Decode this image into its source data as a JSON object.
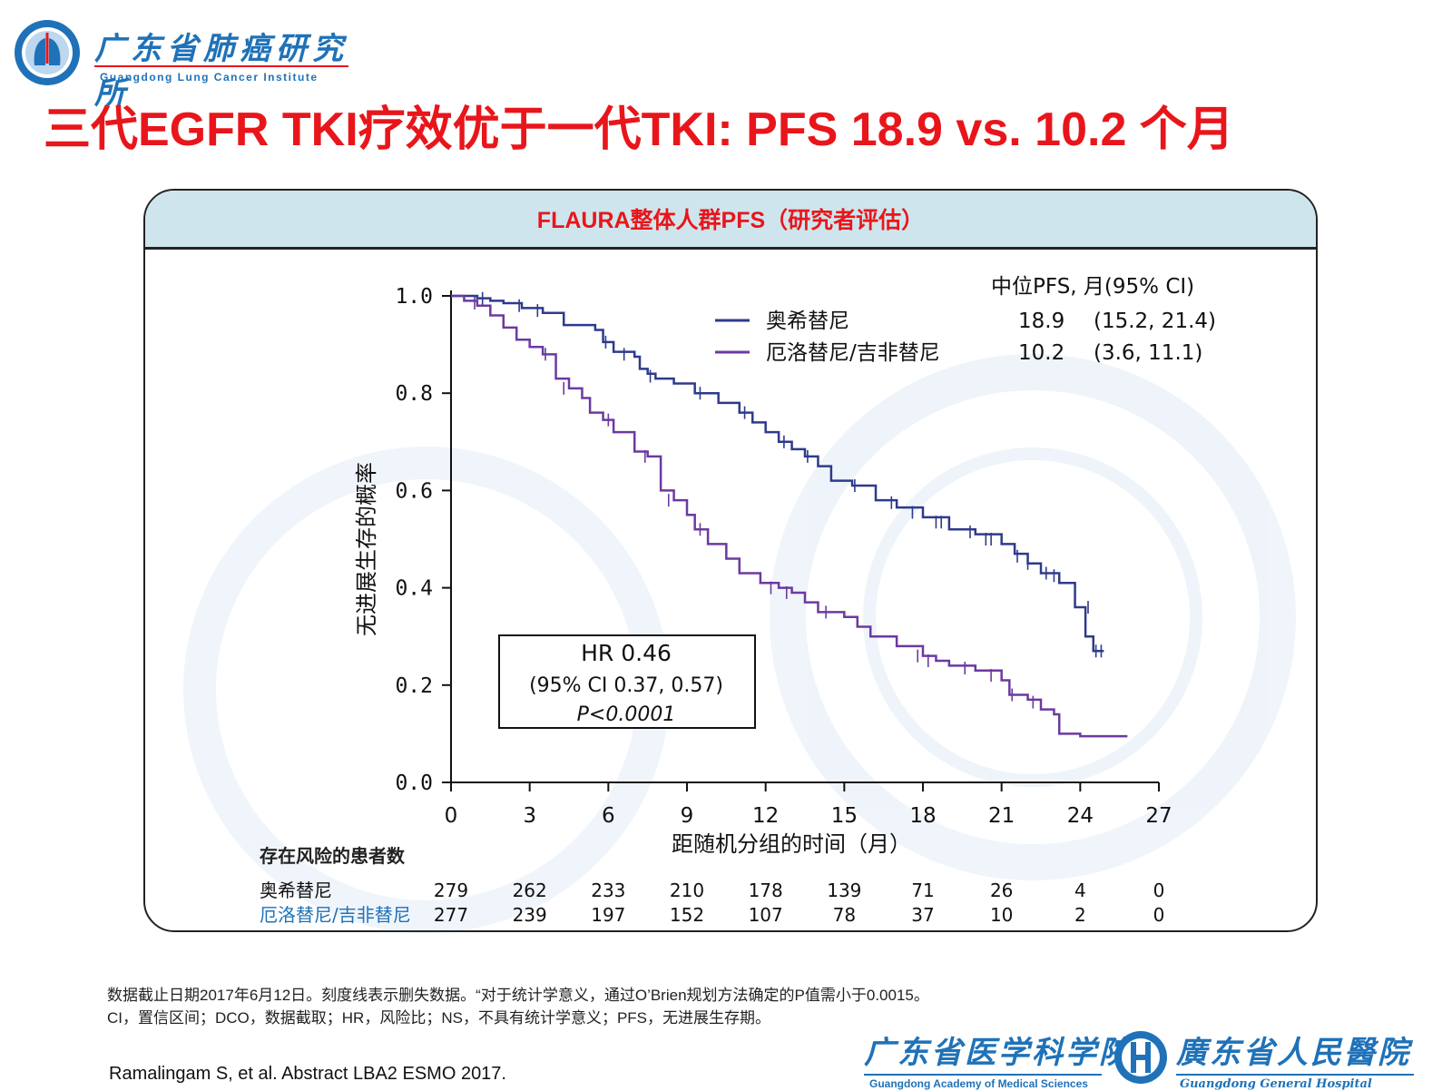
{
  "header": {
    "logo_cn": "广东省肺癌研究所",
    "logo_en": "Guangdong Lung Cancer Institute",
    "title": "三代EGFR TKI疗效优于一代TKI: PFS 18.9 vs. 10.2 个月"
  },
  "panel": {
    "title": "FLAURA整体人群PFS（研究者评估）"
  },
  "colors": {
    "osimertinib": "#2e3a8c",
    "comparator": "#6b3aa0",
    "title_red": "#e8161b",
    "panel_header": "#cfe5ed",
    "blue_label": "#1f72b8"
  },
  "chart_data": {
    "type": "line",
    "xlabel": "距随机分组的时间（月）",
    "ylabel": "无进展生存的概率",
    "xlim": [
      0,
      27
    ],
    "ylim": [
      0,
      1
    ],
    "x_ticks": [
      "0",
      "3",
      "6",
      "9",
      "12",
      "15",
      "18",
      "21",
      "24",
      "27"
    ],
    "y_ticks": [
      "0.0",
      "0.2",
      "0.4",
      "0.6",
      "0.8",
      "1.0"
    ],
    "legend": {
      "header": "中位PFS, 月(95% CI)",
      "entries": [
        {
          "name": "奥希替尼",
          "median": "18.9",
          "ci": "(15.2, 21.4)"
        },
        {
          "name": "厄洛替尼/吉非替尼",
          "median": "10.2",
          "ci": "(3.6, 11.1)"
        }
      ]
    },
    "annotation": {
      "hr": "HR 0.46",
      "ci": "(95% CI 0.37, 0.57)",
      "p": "P<0.0001"
    },
    "series": [
      {
        "name": "奥希替尼",
        "color": "#2e3a8c",
        "points": [
          [
            0,
            1.0
          ],
          [
            0.5,
            1.0
          ],
          [
            1.0,
            0.995
          ],
          [
            1.5,
            0.99
          ],
          [
            2.0,
            0.985
          ],
          [
            2.7,
            0.975
          ],
          [
            3.5,
            0.965
          ],
          [
            4.3,
            0.94
          ],
          [
            5.5,
            0.93
          ],
          [
            5.8,
            0.905
          ],
          [
            6.2,
            0.885
          ],
          [
            7.0,
            0.875
          ],
          [
            7.2,
            0.85
          ],
          [
            7.5,
            0.84
          ],
          [
            7.8,
            0.83
          ],
          [
            8.5,
            0.82
          ],
          [
            9.3,
            0.8
          ],
          [
            10.2,
            0.78
          ],
          [
            11.0,
            0.76
          ],
          [
            11.5,
            0.74
          ],
          [
            12.0,
            0.72
          ],
          [
            12.5,
            0.7
          ],
          [
            13.0,
            0.685
          ],
          [
            13.5,
            0.67
          ],
          [
            14.0,
            0.65
          ],
          [
            14.5,
            0.62
          ],
          [
            15.3,
            0.61
          ],
          [
            16.2,
            0.58
          ],
          [
            17.0,
            0.565
          ],
          [
            18.0,
            0.545
          ],
          [
            19.0,
            0.52
          ],
          [
            20.0,
            0.51
          ],
          [
            21.0,
            0.49
          ],
          [
            21.5,
            0.47
          ],
          [
            22.0,
            0.45
          ],
          [
            22.5,
            0.43
          ],
          [
            23.2,
            0.41
          ],
          [
            23.8,
            0.36
          ],
          [
            24.2,
            0.3
          ],
          [
            24.5,
            0.27
          ],
          [
            24.9,
            0.27
          ]
        ],
        "censor": [
          [
            1.2,
            0.995
          ],
          [
            2.6,
            0.98
          ],
          [
            3.3,
            0.97
          ],
          [
            5.9,
            0.905
          ],
          [
            6.6,
            0.88
          ],
          [
            7.6,
            0.835
          ],
          [
            9.5,
            0.8
          ],
          [
            11.2,
            0.76
          ],
          [
            12.7,
            0.7
          ],
          [
            13.6,
            0.67
          ],
          [
            15.4,
            0.61
          ],
          [
            16.8,
            0.575
          ],
          [
            17.6,
            0.555
          ],
          [
            18.5,
            0.535
          ],
          [
            18.7,
            0.535
          ],
          [
            19.8,
            0.515
          ],
          [
            20.4,
            0.5
          ],
          [
            20.6,
            0.5
          ],
          [
            21.6,
            0.465
          ],
          [
            22.0,
            0.45
          ],
          [
            22.7,
            0.43
          ],
          [
            23.0,
            0.425
          ],
          [
            24.3,
            0.36
          ],
          [
            24.6,
            0.27
          ],
          [
            24.8,
            0.27
          ]
        ]
      },
      {
        "name": "厄洛替尼/吉非替尼",
        "color": "#6b3aa0",
        "points": [
          [
            0,
            1.0
          ],
          [
            0.5,
            0.99
          ],
          [
            1.0,
            0.98
          ],
          [
            1.5,
            0.96
          ],
          [
            2.0,
            0.935
          ],
          [
            2.5,
            0.91
          ],
          [
            3.0,
            0.895
          ],
          [
            3.5,
            0.88
          ],
          [
            4.0,
            0.83
          ],
          [
            4.5,
            0.81
          ],
          [
            5.0,
            0.79
          ],
          [
            5.3,
            0.76
          ],
          [
            5.8,
            0.745
          ],
          [
            6.2,
            0.72
          ],
          [
            7.0,
            0.68
          ],
          [
            7.5,
            0.67
          ],
          [
            8.0,
            0.6
          ],
          [
            8.5,
            0.58
          ],
          [
            9.0,
            0.55
          ],
          [
            9.3,
            0.52
          ],
          [
            9.8,
            0.49
          ],
          [
            10.5,
            0.46
          ],
          [
            11.0,
            0.43
          ],
          [
            11.8,
            0.41
          ],
          [
            12.5,
            0.4
          ],
          [
            13.0,
            0.39
          ],
          [
            13.5,
            0.37
          ],
          [
            14.0,
            0.35
          ],
          [
            15.0,
            0.34
          ],
          [
            15.5,
            0.32
          ],
          [
            16.0,
            0.3
          ],
          [
            17.0,
            0.28
          ],
          [
            18.0,
            0.26
          ],
          [
            18.5,
            0.25
          ],
          [
            19.0,
            0.24
          ],
          [
            20.0,
            0.23
          ],
          [
            21.0,
            0.21
          ],
          [
            21.3,
            0.18
          ],
          [
            22.0,
            0.17
          ],
          [
            22.5,
            0.15
          ],
          [
            23.0,
            0.14
          ],
          [
            23.2,
            0.1
          ],
          [
            24.0,
            0.095
          ],
          [
            25.8,
            0.095
          ]
        ],
        "censor": [
          [
            0.9,
            0.985
          ],
          [
            3.6,
            0.88
          ],
          [
            4.3,
            0.81
          ],
          [
            6.0,
            0.745
          ],
          [
            7.4,
            0.67
          ],
          [
            8.3,
            0.58
          ],
          [
            9.5,
            0.52
          ],
          [
            12.2,
            0.4
          ],
          [
            12.8,
            0.39
          ],
          [
            14.3,
            0.35
          ],
          [
            17.8,
            0.26
          ],
          [
            18.2,
            0.25
          ],
          [
            19.6,
            0.235
          ],
          [
            20.6,
            0.22
          ],
          [
            21.4,
            0.18
          ],
          [
            22.2,
            0.165
          ]
        ]
      }
    ],
    "risk_table": {
      "title": "存在风险的患者数",
      "rows": [
        {
          "name": "奥希替尼",
          "color": "#111111",
          "counts": [
            "279",
            "262",
            "233",
            "210",
            "178",
            "139",
            "71",
            "26",
            "4",
            "0"
          ]
        },
        {
          "name": "厄洛替尼/吉非替尼",
          "color": "#1f72b8",
          "counts": [
            "277",
            "239",
            "197",
            "152",
            "107",
            "78",
            "37",
            "10",
            "2",
            "0"
          ]
        }
      ]
    }
  },
  "footnotes": {
    "line1": "数据截止日期2017年6月12日。刻度线表示删失数据。“对于统计学意义，通过O’Brien规划方法确定的P值需小于0.0015。",
    "line2": "CI，置信区间；DCO，数据截取；HR，风险比；NS，不具有统计学意义；PFS，无进展生存期。",
    "reference": "Ramalingam S, et al. Abstract LBA2 ESMO 2017."
  },
  "bottom_logos": {
    "academy_cn": "广东省医学科学院",
    "academy_en": "Guangdong Academy of Medical Sciences",
    "hospital_cn": "廣东省人民醫院",
    "hospital_en": "Guangdong General Hospital"
  }
}
